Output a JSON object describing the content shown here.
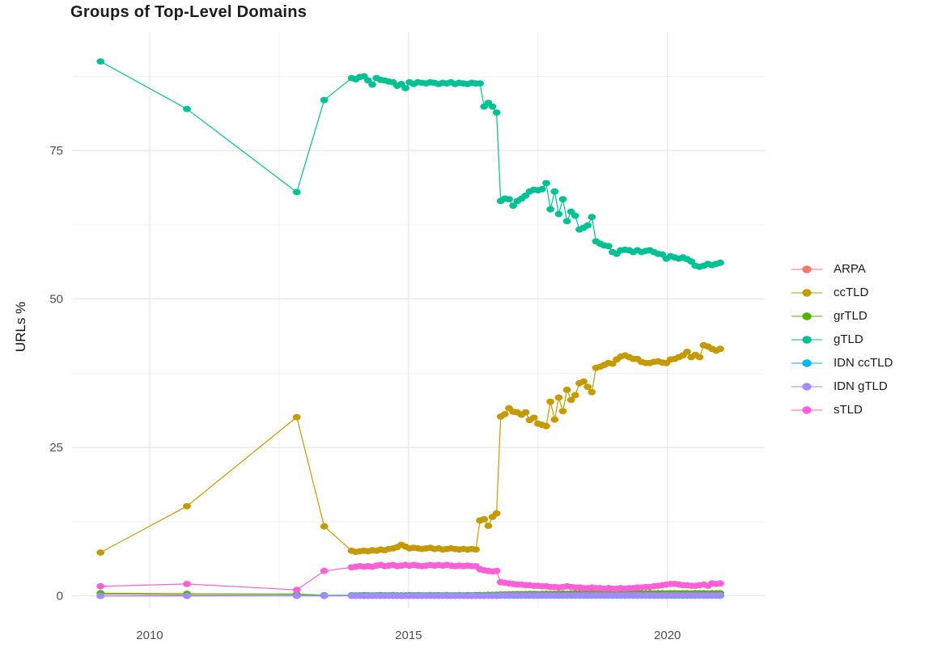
{
  "title": "Groups of Top-Level Domains",
  "colors": {
    "background": "#FFFFFF",
    "grid_major": "#E4E4E4",
    "grid_minor": "#F1F1F1",
    "tick_label": "#4D4D4D",
    "text": "#1C1C1C"
  },
  "chart_data": {
    "type": "line",
    "title": "Groups of Top-Level Domains",
    "xlabel": "",
    "ylabel": "URLs %",
    "x_unit": "year",
    "xlim": [
      2008.5,
      2021.88
    ],
    "ylim": [
      -2.1,
      94.9
    ],
    "x_ticks": [
      2010,
      2015,
      2020
    ],
    "x_minor_ticks": [
      2012.5,
      2017.5
    ],
    "y_ticks": [
      0,
      25,
      50,
      75
    ],
    "y_minor_ticks": [
      12.5,
      37.5,
      62.5,
      87.5
    ],
    "grid": "major+minor",
    "legend_position": "right",
    "marker": "point",
    "x": [
      2009.05,
      2010.72,
      2012.84,
      2013.37,
      2013.9,
      2013.98,
      2014.06,
      2014.14,
      2014.22,
      2014.3,
      2014.38,
      2014.46,
      2014.54,
      2014.62,
      2014.7,
      2014.78,
      2014.86,
      2014.94,
      2015.02,
      2015.1,
      2015.18,
      2015.26,
      2015.34,
      2015.42,
      2015.5,
      2015.58,
      2015.66,
      2015.74,
      2015.82,
      2015.9,
      2015.98,
      2016.06,
      2016.14,
      2016.22,
      2016.3,
      2016.38,
      2016.46,
      2016.54,
      2016.62,
      2016.7,
      2016.78,
      2016.86,
      2016.94,
      2017.02,
      2017.1,
      2017.18,
      2017.26,
      2017.34,
      2017.42,
      2017.5,
      2017.58,
      2017.66,
      2017.74,
      2017.82,
      2017.9,
      2017.98,
      2018.06,
      2018.14,
      2018.22,
      2018.3,
      2018.38,
      2018.46,
      2018.54,
      2018.62,
      2018.7,
      2018.78,
      2018.86,
      2018.94,
      2019.02,
      2019.1,
      2019.18,
      2019.26,
      2019.34,
      2019.42,
      2019.5,
      2019.58,
      2019.66,
      2019.74,
      2019.82,
      2019.9,
      2019.98,
      2020.06,
      2020.14,
      2020.22,
      2020.3,
      2020.38,
      2020.46,
      2020.54,
      2020.62,
      2020.7,
      2020.78,
      2020.86,
      2020.94,
      2021.02
    ],
    "series": [
      {
        "name": "ARPA",
        "color": "#F8766D",
        "values": [
          0.3,
          0.12,
          0.08,
          0.05,
          0.05,
          0.05,
          0.05,
          0.05,
          0.05,
          0.05,
          0.05,
          0.05,
          0.05,
          0.05,
          0.05,
          0.05,
          0.05,
          0.05,
          0.05,
          0.05,
          0.05,
          0.05,
          0.05,
          0.05,
          0.05,
          0.05,
          0.05,
          0.05,
          0.05,
          0.05,
          0.05,
          0.05,
          0.05,
          0.05,
          0.05,
          0.05,
          0.05,
          0.05,
          0.05,
          0.05,
          0.05,
          0.05,
          0.05,
          0.05,
          0.05,
          0.05,
          0.05,
          0.05,
          0.05,
          0.05,
          0.05,
          0.05,
          0.05,
          0.05,
          0.05,
          0.05,
          0.05,
          0.05,
          0.05,
          0.05,
          0.05,
          0.05,
          0.05,
          0.05,
          0.05,
          0.05,
          0.05,
          0.05,
          0.05,
          0.05,
          0.05,
          0.05,
          0.05,
          0.05,
          0.05,
          0.05,
          0.05,
          0.05,
          0.05,
          0.05,
          0.05,
          0.05,
          0.05,
          0.05,
          0.05,
          0.05,
          0.05,
          0.05,
          0.05,
          0.05,
          0.05,
          0.05,
          0.05,
          0.05
        ]
      },
      {
        "name": "ccTLD",
        "color": "#C49A00",
        "values": [
          7.3,
          15.1,
          30.1,
          11.7,
          7.6,
          7.4,
          7.5,
          7.6,
          7.5,
          7.7,
          7.6,
          7.8,
          7.7,
          7.9,
          8.0,
          8.2,
          8.6,
          8.3,
          8.0,
          8.1,
          8.0,
          7.9,
          8.0,
          8.1,
          7.9,
          8.0,
          7.8,
          7.9,
          8.0,
          7.9,
          7.8,
          7.9,
          7.8,
          7.9,
          7.8,
          12.7,
          12.9,
          11.8,
          13.3,
          13.9,
          30.2,
          30.6,
          31.6,
          31.0,
          30.9,
          30.5,
          30.9,
          29.6,
          30.0,
          29.0,
          28.8,
          28.6,
          32.7,
          29.7,
          33.4,
          31.1,
          34.7,
          33.0,
          33.8,
          35.8,
          36.1,
          35.2,
          34.3,
          38.4,
          38.6,
          38.9,
          39.2,
          39.1,
          39.8,
          40.3,
          40.5,
          40.2,
          39.9,
          39.9,
          39.4,
          39.2,
          39.2,
          39.4,
          39.5,
          39.3,
          39.2,
          39.8,
          39.9,
          40.2,
          40.5,
          41.1,
          40.2,
          40.6,
          40.2,
          42.2,
          42.0,
          41.6,
          41.3,
          41.6
        ]
      },
      {
        "name": "grTLD",
        "color": "#53B400",
        "values": [
          0.45,
          0.35,
          0.3,
          0.1,
          0.1,
          0.08,
          0.1,
          0.12,
          0.1,
          0.08,
          0.1,
          0.12,
          0.1,
          0.1,
          0.12,
          0.1,
          0.08,
          0.1,
          0.12,
          0.1,
          0.12,
          0.1,
          0.1,
          0.12,
          0.1,
          0.12,
          0.1,
          0.12,
          0.1,
          0.1,
          0.12,
          0.1,
          0.12,
          0.1,
          0.12,
          0.15,
          0.15,
          0.18,
          0.18,
          0.2,
          0.25,
          0.25,
          0.28,
          0.28,
          0.3,
          0.3,
          0.3,
          0.32,
          0.32,
          0.3,
          0.32,
          0.35,
          0.32,
          0.35,
          0.35,
          0.38,
          0.35,
          0.38,
          0.4,
          0.38,
          0.4,
          0.4,
          0.38,
          0.4,
          0.42,
          0.4,
          0.42,
          0.4,
          0.42,
          0.42,
          0.4,
          0.42,
          0.42,
          0.45,
          0.42,
          0.42,
          0.45,
          0.42,
          0.45,
          0.45,
          0.42,
          0.45,
          0.45,
          0.42,
          0.45,
          0.45,
          0.42,
          0.45,
          0.45,
          0.45,
          0.42,
          0.45,
          0.45,
          0.45
        ]
      },
      {
        "name": "gTLD",
        "color": "#00C094",
        "values": [
          90.0,
          82.0,
          68.0,
          83.5,
          87.2,
          87.0,
          87.4,
          87.5,
          86.8,
          86.1,
          87.2,
          86.9,
          86.8,
          86.6,
          86.5,
          85.9,
          86.2,
          85.5,
          86.5,
          86.2,
          86.5,
          86.4,
          86.3,
          86.5,
          86.4,
          86.2,
          86.4,
          86.3,
          86.5,
          86.2,
          86.4,
          86.3,
          86.2,
          86.4,
          86.3,
          86.3,
          82.4,
          83.0,
          82.4,
          81.4,
          66.5,
          66.9,
          66.8,
          65.7,
          66.5,
          66.9,
          67.4,
          68.1,
          68.4,
          68.3,
          68.5,
          69.5,
          65.1,
          68.1,
          64.3,
          66.8,
          63.1,
          64.7,
          64.0,
          61.7,
          62.0,
          62.4,
          63.8,
          59.7,
          59.3,
          59.0,
          58.9,
          57.9,
          57.6,
          58.2,
          58.3,
          58.2,
          57.9,
          58.2,
          57.9,
          58.1,
          58.2,
          57.9,
          57.6,
          57.5,
          56.8,
          57.2,
          57.0,
          56.8,
          57.0,
          56.7,
          56.3,
          55.6,
          55.4,
          55.6,
          55.9,
          55.7,
          55.9,
          56.1
        ]
      },
      {
        "name": "IDN ccTLD",
        "color": "#00B6EB",
        "values": [
          0.0,
          0.0,
          0.05,
          0.03,
          0.03,
          0.03,
          0.03,
          0.03,
          0.03,
          0.03,
          0.03,
          0.03,
          0.03,
          0.03,
          0.03,
          0.03,
          0.03,
          0.03,
          0.03,
          0.03,
          0.03,
          0.03,
          0.03,
          0.03,
          0.03,
          0.03,
          0.03,
          0.03,
          0.03,
          0.03,
          0.03,
          0.03,
          0.03,
          0.03,
          0.03,
          0.03,
          0.03,
          0.03,
          0.03,
          0.03,
          0.03,
          0.03,
          0.03,
          0.03,
          0.03,
          0.03,
          0.03,
          0.03,
          0.03,
          0.03,
          0.03,
          0.03,
          0.03,
          0.03,
          0.03,
          0.03,
          0.03,
          0.03,
          0.03,
          0.03,
          0.03,
          0.03,
          0.03,
          0.03,
          0.03,
          0.03,
          0.03,
          0.03,
          0.03,
          0.03,
          0.03,
          0.03,
          0.03,
          0.03,
          0.03,
          0.03,
          0.03,
          0.03,
          0.03,
          0.03,
          0.03,
          0.03,
          0.03,
          0.03,
          0.03,
          0.03,
          0.03,
          0.03,
          0.03,
          0.03,
          0.03,
          0.03,
          0.03,
          0.03
        ]
      },
      {
        "name": "IDN gTLD",
        "color": "#A58AFF",
        "values": [
          0.0,
          0.0,
          0.0,
          0.0,
          0.0,
          0.0,
          0.0,
          0.0,
          0.0,
          0.0,
          0.0,
          0.0,
          0.0,
          0.0,
          0.0,
          0.0,
          0.0,
          0.0,
          0.0,
          0.0,
          0.0,
          0.0,
          0.0,
          0.0,
          0.0,
          0.0,
          0.0,
          0.0,
          0.0,
          0.0,
          0.0,
          0.0,
          0.0,
          0.0,
          0.0,
          0.0,
          0.0,
          0.0,
          0.0,
          0.0,
          0.08,
          0.08,
          0.08,
          0.08,
          0.08,
          0.08,
          0.08,
          0.08,
          0.08,
          0.08,
          0.08,
          0.08,
          0.08,
          0.08,
          0.08,
          0.08,
          0.08,
          0.08,
          0.08,
          0.08,
          0.08,
          0.08,
          0.08,
          0.08,
          0.08,
          0.08,
          0.08,
          0.08,
          0.08,
          0.08,
          0.08,
          0.08,
          0.08,
          0.08,
          0.08,
          0.08,
          0.08,
          0.08,
          0.08,
          0.08,
          0.08,
          0.08,
          0.08,
          0.08,
          0.08,
          0.08,
          0.08,
          0.08,
          0.08,
          0.08,
          0.08,
          0.08,
          0.08,
          0.08
        ]
      },
      {
        "name": "sTLD",
        "color": "#FB61D7",
        "values": [
          1.6,
          2.0,
          1.0,
          4.2,
          4.8,
          4.9,
          5.0,
          4.9,
          5.0,
          4.9,
          5.1,
          5.2,
          5.0,
          5.1,
          5.2,
          5.0,
          5.1,
          5.2,
          5.1,
          5.2,
          5.1,
          5.0,
          5.1,
          5.2,
          5.1,
          5.2,
          5.1,
          5.2,
          5.1,
          5.0,
          5.1,
          5.0,
          5.1,
          5.0,
          5.0,
          4.5,
          4.3,
          4.2,
          4.1,
          4.2,
          2.3,
          2.2,
          2.1,
          2.0,
          1.9,
          1.9,
          1.8,
          1.8,
          1.7,
          1.7,
          1.6,
          1.6,
          1.5,
          1.5,
          1.4,
          1.5,
          1.6,
          1.5,
          1.4,
          1.4,
          1.3,
          1.3,
          1.4,
          1.3,
          1.3,
          1.2,
          1.3,
          1.2,
          1.2,
          1.3,
          1.2,
          1.3,
          1.3,
          1.4,
          1.4,
          1.5,
          1.5,
          1.6,
          1.7,
          1.8,
          1.9,
          2.0,
          2.0,
          1.9,
          1.8,
          1.8,
          1.7,
          1.7,
          1.8,
          1.9,
          1.7,
          2.1,
          2.0,
          2.1
        ]
      }
    ]
  }
}
